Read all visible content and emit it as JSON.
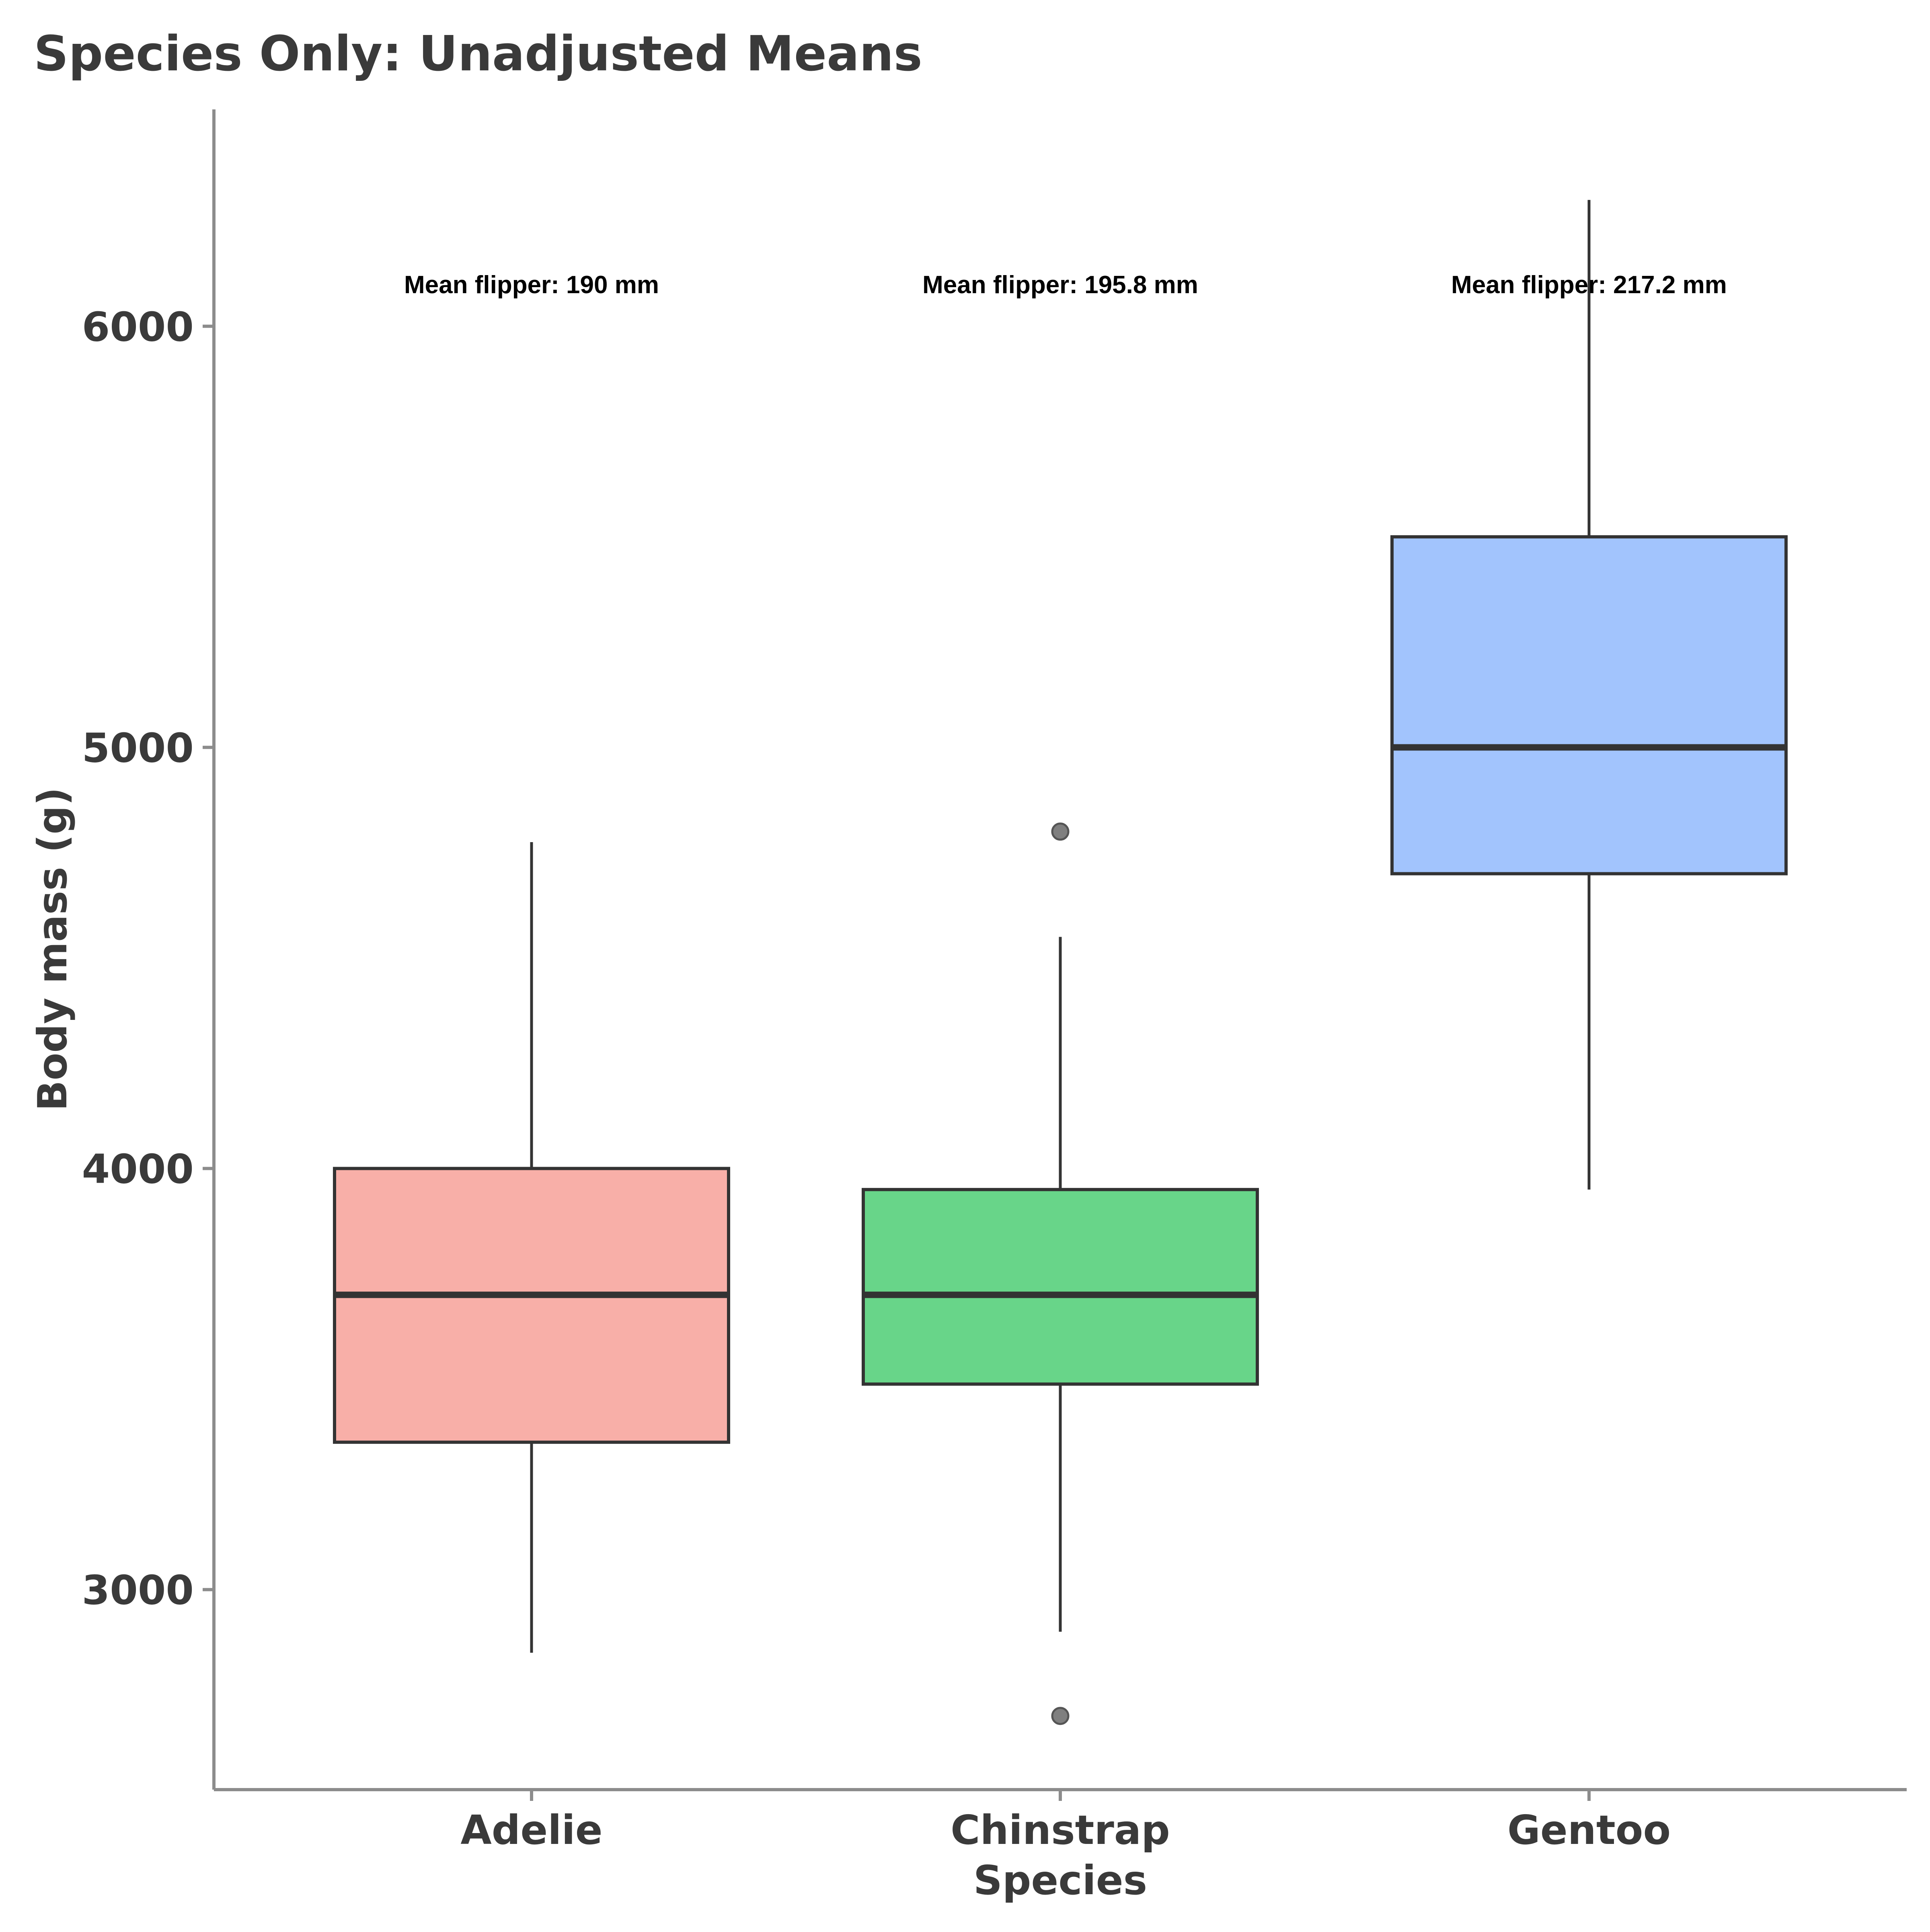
{
  "chart_data": {
    "type": "boxplot",
    "title": "Species Only: Unadjusted Means",
    "xlabel": "Species",
    "ylabel": "Body mass (g)",
    "ylim": [
      2525,
      6515
    ],
    "yticks": [
      3000,
      4000,
      5000,
      6000
    ],
    "grid": false,
    "legend": "none",
    "categories": [
      "Adelie",
      "Chinstrap",
      "Gentoo"
    ],
    "boxes": [
      {
        "category": "Adelie",
        "whisker_low": 2850,
        "q1": 3350,
        "median": 3700,
        "q3": 4000,
        "whisker_high": 4775,
        "outliers": [],
        "color": "#F8AFA8"
      },
      {
        "category": "Chinstrap",
        "whisker_low": 2900,
        "q1": 3488,
        "median": 3700,
        "q3": 3950,
        "whisker_high": 4550,
        "outliers": [
          4800,
          2700
        ],
        "color": "#68D589"
      },
      {
        "category": "Gentoo",
        "whisker_low": 3950,
        "q1": 4700,
        "median": 5000,
        "q3": 5500,
        "whisker_high": 6300,
        "outliers": [],
        "color": "#A2C4FD"
      }
    ],
    "annotations": [
      {
        "category": "Adelie",
        "y": 6050,
        "text": "Mean flipper: 190 mm"
      },
      {
        "category": "Chinstrap",
        "y": 6050,
        "text": "Mean flipper: 195.8 mm"
      },
      {
        "category": "Gentoo",
        "y": 6050,
        "text": "Mean flipper: 217.2 mm"
      }
    ],
    "colors": {
      "text": "#3a3a3a",
      "axis": "#8c8c8c",
      "box_outline": "#333333",
      "outlier_fill": "#7f7f7f"
    }
  }
}
